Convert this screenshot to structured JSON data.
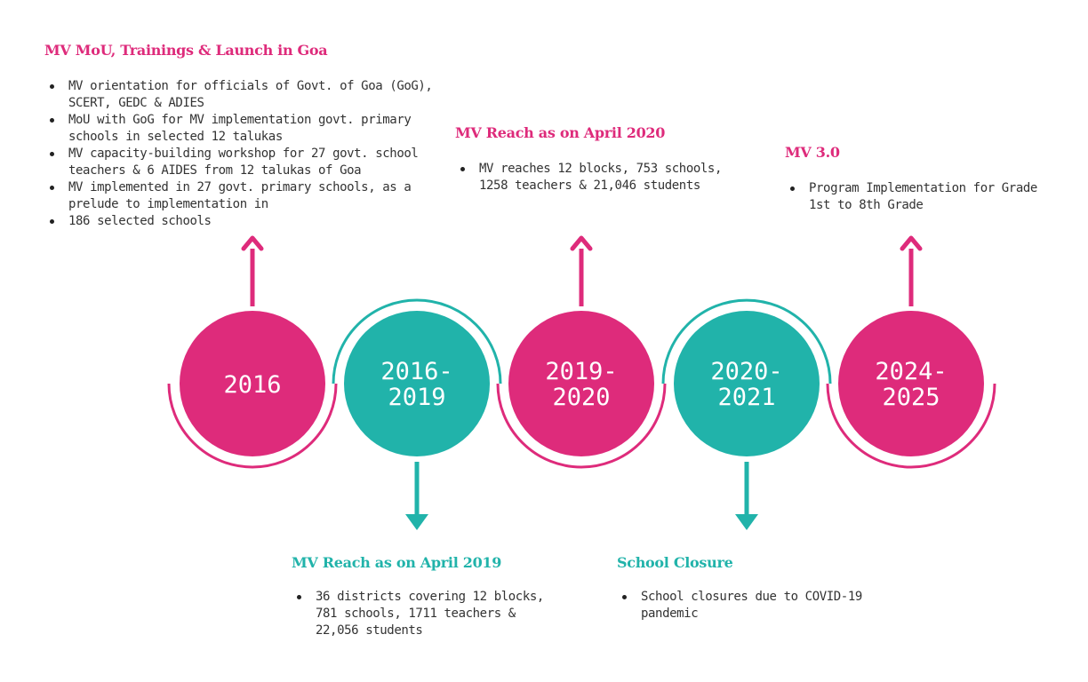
{
  "colors": {
    "pink": "#de2b7b",
    "teal": "#21b3aa",
    "text": "#333333"
  },
  "milestones": [
    {
      "id": "m2016",
      "color": "pink",
      "year_lines": [
        "2016"
      ],
      "arc": "bottom",
      "arrow": "up",
      "title": "MV MoU, Trainings & Launch in Goa",
      "bullets": [
        "MV orientation for officials of Govt. of Goa (GoG), SCERT, GEDC & ADIES",
        "MoU with GoG for MV implementation govt. primary schools in selected 12 talukas",
        "MV capacity-building workshop for 27 govt. school teachers & 6 AIDES from 12 talukas of Goa",
        "MV implemented in 27 govt. primary schools, as a prelude to implementation in",
        "186 selected schools"
      ]
    },
    {
      "id": "m2016_2019",
      "color": "teal",
      "year_lines": [
        "2016-",
        "2019"
      ],
      "arc": "top",
      "arrow": "down",
      "title": "MV Reach as on April 2019",
      "bullets": [
        "36 districts covering 12 blocks, 781 schools, 1711 teachers & 22,056 students"
      ]
    },
    {
      "id": "m2019_2020",
      "color": "pink",
      "year_lines": [
        "2019-",
        "2020"
      ],
      "arc": "bottom",
      "arrow": "up",
      "title": "MV Reach as on April 2020",
      "bullets": [
        "MV reaches 12 blocks, 753 schools, 1258 teachers & 21,046 students"
      ]
    },
    {
      "id": "m2020_2021",
      "color": "teal",
      "year_lines": [
        "2020-",
        "2021"
      ],
      "arc": "top",
      "arrow": "down",
      "title": "School Closure",
      "bullets": [
        "School closures due to COVID-19 pandemic"
      ]
    },
    {
      "id": "m2024_2025",
      "color": "pink",
      "year_lines": [
        "2024-",
        "2025"
      ],
      "arc": "bottom",
      "arrow": "up",
      "title": "MV 3.0",
      "bullets": [
        "Program Implementation for Grade 1st to 8th Grade"
      ]
    }
  ]
}
